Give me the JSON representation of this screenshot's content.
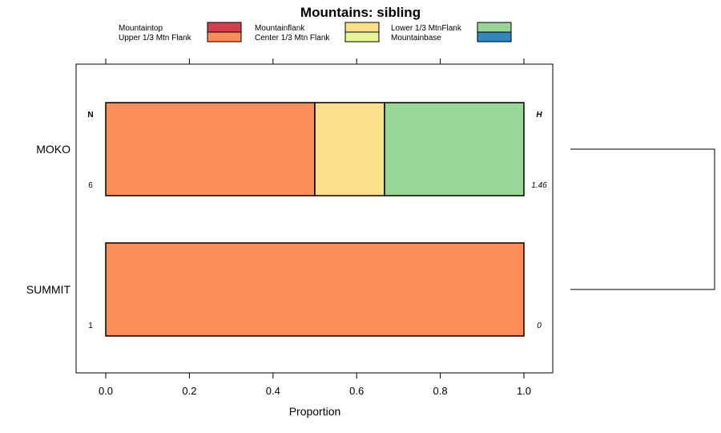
{
  "chart_data": {
    "type": "bar",
    "orientation": "horizontal",
    "stacked": true,
    "title": "Mountains: sibling",
    "xlabel": "Proportion",
    "ylabel": "",
    "xlim": [
      -0.07,
      1.07
    ],
    "xticks": [
      "0.0",
      "0.2",
      "0.4",
      "0.6",
      "0.8",
      "1.0"
    ],
    "xtick_values": [
      0.0,
      0.2,
      0.4,
      0.6,
      0.8,
      1.0
    ],
    "categories": [
      "MOKO",
      "SUMMIT"
    ],
    "legend": [
      {
        "label": "Mountaintop",
        "color": "#D53E4F"
      },
      {
        "label": "Upper 1/3 Mtn Flank",
        "color": "#FC8D59"
      },
      {
        "label": "Mountainflank",
        "color": "#FEE08B"
      },
      {
        "label": "Center 1/3 Mtn Flank",
        "color": "#E6F598"
      },
      {
        "label": "Lower 1/3 MtnFlank",
        "color": "#99D594"
      },
      {
        "label": "Mountainbase",
        "color": "#3288BD"
      }
    ],
    "series": [
      {
        "name": "Mountaintop",
        "values": [
          0,
          0
        ]
      },
      {
        "name": "Upper 1/3 Mtn Flank",
        "values": [
          0.5,
          1.0
        ]
      },
      {
        "name": "Mountainflank",
        "values": [
          0.1667,
          0
        ]
      },
      {
        "name": "Center 1/3 Mtn Flank",
        "values": [
          0,
          0
        ]
      },
      {
        "name": "Lower 1/3 MtnFlank",
        "values": [
          0.3333,
          0
        ]
      },
      {
        "name": "Mountainbase",
        "values": [
          0,
          0
        ]
      }
    ],
    "n_header": "N",
    "h_header": "H",
    "n_values": [
      "6",
      "1"
    ],
    "h_values": [
      "1.46",
      "0"
    ],
    "dendrogram": true
  }
}
